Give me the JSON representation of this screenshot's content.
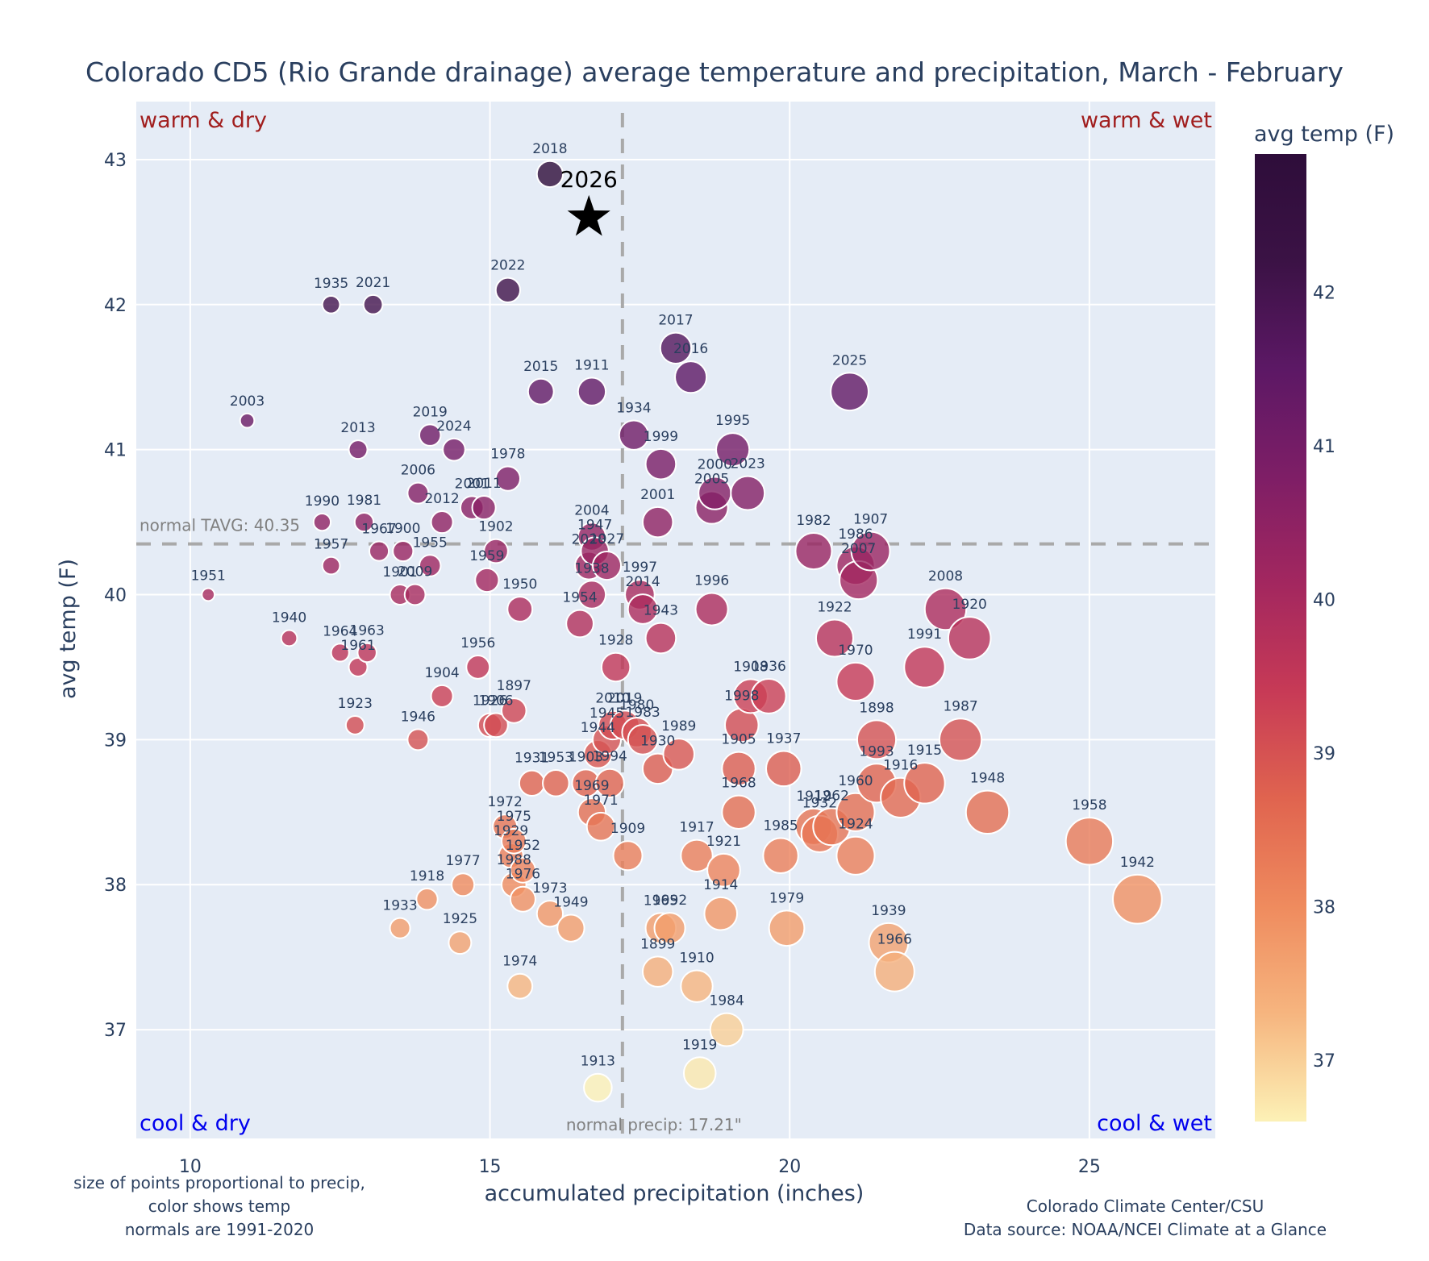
{
  "chart_data": {
    "type": "scatter",
    "title": "Colorado CD5 (Rio Grande drainage) average temperature and precipitation, March - February",
    "xlabel": "accumulated precipitation (inches)",
    "ylabel": "avg temp (F)",
    "xlim": [
      9.1,
      27.1
    ],
    "ylim": [
      36.25,
      43.4
    ],
    "xticks": [
      10,
      15,
      20,
      25
    ],
    "yticks": [
      37,
      38,
      39,
      40,
      41,
      42,
      43
    ],
    "grid": true,
    "colorbar": {
      "title": "avg temp (F)",
      "ticks": [
        37,
        38,
        39,
        40,
        41,
        42
      ],
      "range": [
        36.6,
        42.9
      ],
      "colors": [
        "#fcf1b6",
        "#f6b57f",
        "#ef8b5e",
        "#e0644f",
        "#c73a56",
        "#a3275f",
        "#7e1e66",
        "#5c1865",
        "#3b1245",
        "#2e0d3a"
      ]
    },
    "normals": {
      "precip": 17.21,
      "precip_label": "normal precip: 17.21\"",
      "tavg": 40.35,
      "tavg_label": "normal TAVG: 40.35"
    },
    "quadrant_labels": {
      "top_left": "warm & dry",
      "top_right": "warm & wet",
      "bottom_left": "cool & dry",
      "bottom_right": "cool & wet"
    },
    "highlight": {
      "label": "2026",
      "precip": 16.65,
      "temp": 42.6,
      "marker": "star"
    },
    "points": [
      {
        "year": "2018",
        "x": 16.0,
        "y": 42.9
      },
      {
        "year": "2022",
        "x": 15.3,
        "y": 42.1
      },
      {
        "year": "1935",
        "x": 12.35,
        "y": 42.0
      },
      {
        "year": "2021",
        "x": 13.05,
        "y": 42.0
      },
      {
        "year": "2017",
        "x": 18.1,
        "y": 41.7
      },
      {
        "year": "2016",
        "x": 18.35,
        "y": 41.5
      },
      {
        "year": "2015",
        "x": 15.85,
        "y": 41.4
      },
      {
        "year": "1911",
        "x": 16.7,
        "y": 41.4
      },
      {
        "year": "2025",
        "x": 21.0,
        "y": 41.4
      },
      {
        "year": "2003",
        "x": 10.95,
        "y": 41.2
      },
      {
        "year": "1934",
        "x": 17.4,
        "y": 41.1
      },
      {
        "year": "2019",
        "x": 14.0,
        "y": 41.1
      },
      {
        "year": "2013",
        "x": 12.8,
        "y": 41.0
      },
      {
        "year": "2024",
        "x": 14.4,
        "y": 41.0
      },
      {
        "year": "1995",
        "x": 19.05,
        "y": 41.0
      },
      {
        "year": "1999",
        "x": 17.85,
        "y": 40.9
      },
      {
        "year": "1978",
        "x": 15.3,
        "y": 40.8
      },
      {
        "year": "2006",
        "x": 13.8,
        "y": 40.7
      },
      {
        "year": "2000",
        "x": 18.75,
        "y": 40.7
      },
      {
        "year": "2023",
        "x": 19.3,
        "y": 40.7
      },
      {
        "year": "2001",
        "x": 14.7,
        "y": 40.6
      },
      {
        "year": "2011",
        "x": 14.9,
        "y": 40.6
      },
      {
        "year": "2005",
        "x": 18.7,
        "y": 40.6
      },
      {
        "year": "1990",
        "x": 12.2,
        "y": 40.5
      },
      {
        "year": "1981",
        "x": 12.9,
        "y": 40.5
      },
      {
        "year": "2012",
        "x": 14.2,
        "y": 40.5
      },
      {
        "year": "2001b",
        "x": 17.8,
        "y": 40.5
      },
      {
        "year": "2004",
        "x": 16.7,
        "y": 40.4
      },
      {
        "year": "1947",
        "x": 16.75,
        "y": 40.3
      },
      {
        "year": "1927",
        "x": 16.95,
        "y": 40.2
      },
      {
        "year": "1967",
        "x": 13.15,
        "y": 40.3
      },
      {
        "year": "1900",
        "x": 13.55,
        "y": 40.3
      },
      {
        "year": "1902",
        "x": 15.1,
        "y": 40.3
      },
      {
        "year": "1982",
        "x": 20.4,
        "y": 40.3
      },
      {
        "year": "1907",
        "x": 21.35,
        "y": 40.3
      },
      {
        "year": "1959",
        "x": 14.95,
        "y": 40.1
      },
      {
        "year": "2020",
        "x": 16.65,
        "y": 40.2
      },
      {
        "year": "1957",
        "x": 12.35,
        "y": 40.2
      },
      {
        "year": "1955",
        "x": 14.0,
        "y": 40.2
      },
      {
        "year": "1986",
        "x": 21.1,
        "y": 40.2
      },
      {
        "year": "2007",
        "x": 21.15,
        "y": 40.1
      },
      {
        "year": "1938",
        "x": 16.7,
        "y": 40.0
      },
      {
        "year": "1997",
        "x": 17.5,
        "y": 40.0
      },
      {
        "year": "1951",
        "x": 10.3,
        "y": 40.0
      },
      {
        "year": "1901",
        "x": 13.5,
        "y": 40.0
      },
      {
        "year": "2009",
        "x": 13.75,
        "y": 40.0
      },
      {
        "year": "2014",
        "x": 17.55,
        "y": 39.9
      },
      {
        "year": "1950",
        "x": 15.5,
        "y": 39.9
      },
      {
        "year": "1954",
        "x": 16.5,
        "y": 39.8
      },
      {
        "year": "1943",
        "x": 17.85,
        "y": 39.7
      },
      {
        "year": "1996",
        "x": 18.7,
        "y": 39.9
      },
      {
        "year": "2008",
        "x": 22.6,
        "y": 39.9
      },
      {
        "year": "1920",
        "x": 23.0,
        "y": 39.7
      },
      {
        "year": "1940",
        "x": 11.65,
        "y": 39.7
      },
      {
        "year": "1922",
        "x": 20.75,
        "y": 39.7
      },
      {
        "year": "1964",
        "x": 12.5,
        "y": 39.6
      },
      {
        "year": "1963",
        "x": 12.95,
        "y": 39.6
      },
      {
        "year": "1961",
        "x": 12.8,
        "y": 39.5
      },
      {
        "year": "1928",
        "x": 17.1,
        "y": 39.5
      },
      {
        "year": "1956",
        "x": 14.8,
        "y": 39.5
      },
      {
        "year": "1991",
        "x": 22.25,
        "y": 39.5
      },
      {
        "year": "1970",
        "x": 21.1,
        "y": 39.4
      },
      {
        "year": "1904",
        "x": 14.2,
        "y": 39.3
      },
      {
        "year": "1908",
        "x": 19.35,
        "y": 39.3
      },
      {
        "year": "1936",
        "x": 19.65,
        "y": 39.3
      },
      {
        "year": "1897",
        "x": 15.4,
        "y": 39.2
      },
      {
        "year": "1926",
        "x": 15.0,
        "y": 39.1
      },
      {
        "year": "1906",
        "x": 15.1,
        "y": 39.1
      },
      {
        "year": "1923",
        "x": 12.75,
        "y": 39.1
      },
      {
        "year": "1998",
        "x": 19.2,
        "y": 39.1
      },
      {
        "year": "2010",
        "x": 17.05,
        "y": 39.1
      },
      {
        "year": "2019b",
        "x": 17.25,
        "y": 39.1
      },
      {
        "year": "1980",
        "x": 17.45,
        "y": 39.05
      },
      {
        "year": "1946",
        "x": 13.8,
        "y": 39.0
      },
      {
        "year": "1945",
        "x": 16.95,
        "y": 39.0
      },
      {
        "year": "1983",
        "x": 17.55,
        "y": 39.0
      },
      {
        "year": "1898",
        "x": 21.45,
        "y": 39.0
      },
      {
        "year": "1987",
        "x": 22.85,
        "y": 39.0
      },
      {
        "year": "1944",
        "x": 16.8,
        "y": 38.9
      },
      {
        "year": "1989",
        "x": 18.15,
        "y": 38.9
      },
      {
        "year": "1930",
        "x": 17.8,
        "y": 38.8
      },
      {
        "year": "1905",
        "x": 19.15,
        "y": 38.8
      },
      {
        "year": "1937",
        "x": 19.9,
        "y": 38.8
      },
      {
        "year": "1931",
        "x": 15.7,
        "y": 38.7
      },
      {
        "year": "1953",
        "x": 16.1,
        "y": 38.7
      },
      {
        "year": "1903",
        "x": 16.6,
        "y": 38.7
      },
      {
        "year": "1994",
        "x": 17.0,
        "y": 38.7
      },
      {
        "year": "1993",
        "x": 21.45,
        "y": 38.7
      },
      {
        "year": "1915",
        "x": 22.25,
        "y": 38.7
      },
      {
        "year": "1916",
        "x": 21.85,
        "y": 38.6
      },
      {
        "year": "1969",
        "x": 16.7,
        "y": 38.5
      },
      {
        "year": "1968",
        "x": 19.15,
        "y": 38.5
      },
      {
        "year": "1960",
        "x": 21.1,
        "y": 38.5
      },
      {
        "year": "1948",
        "x": 23.3,
        "y": 38.5
      },
      {
        "year": "1971",
        "x": 16.85,
        "y": 38.4
      },
      {
        "year": "1972",
        "x": 15.25,
        "y": 38.4
      },
      {
        "year": "1912",
        "x": 20.4,
        "y": 38.4
      },
      {
        "year": "1932",
        "x": 20.5,
        "y": 38.35
      },
      {
        "year": "1962",
        "x": 20.7,
        "y": 38.4
      },
      {
        "year": "1975",
        "x": 15.4,
        "y": 38.3
      },
      {
        "year": "1958",
        "x": 25.0,
        "y": 38.3
      },
      {
        "year": "1929",
        "x": 15.35,
        "y": 38.2
      },
      {
        "year": "1909",
        "x": 17.3,
        "y": 38.2
      },
      {
        "year": "1917",
        "x": 18.45,
        "y": 38.2
      },
      {
        "year": "1985",
        "x": 19.85,
        "y": 38.2
      },
      {
        "year": "1924",
        "x": 21.1,
        "y": 38.2
      },
      {
        "year": "1952",
        "x": 15.55,
        "y": 38.1
      },
      {
        "year": "1921",
        "x": 18.9,
        "y": 38.1
      },
      {
        "year": "1988",
        "x": 15.4,
        "y": 38.0
      },
      {
        "year": "1977",
        "x": 14.55,
        "y": 38.0
      },
      {
        "year": "1914",
        "x": 18.85,
        "y": 37.8
      },
      {
        "year": "1976",
        "x": 15.55,
        "y": 37.9
      },
      {
        "year": "1918",
        "x": 13.95,
        "y": 37.9
      },
      {
        "year": "1942",
        "x": 25.8,
        "y": 37.9
      },
      {
        "year": "1973",
        "x": 16.0,
        "y": 37.8
      },
      {
        "year": "1965",
        "x": 17.85,
        "y": 37.7
      },
      {
        "year": "1992",
        "x": 18.0,
        "y": 37.7
      },
      {
        "year": "1949",
        "x": 16.35,
        "y": 37.7
      },
      {
        "year": "1933",
        "x": 13.5,
        "y": 37.7
      },
      {
        "year": "1979",
        "x": 19.95,
        "y": 37.7
      },
      {
        "year": "1925",
        "x": 14.5,
        "y": 37.6
      },
      {
        "year": "1939",
        "x": 21.65,
        "y": 37.6
      },
      {
        "year": "1899",
        "x": 17.8,
        "y": 37.4
      },
      {
        "year": "1966",
        "x": 21.75,
        "y": 37.4
      },
      {
        "year": "1910",
        "x": 18.45,
        "y": 37.3
      },
      {
        "year": "1974",
        "x": 15.5,
        "y": 37.3
      },
      {
        "year": "1984",
        "x": 18.95,
        "y": 37.0
      },
      {
        "year": "1919",
        "x": 18.5,
        "y": 36.7
      },
      {
        "year": "1913",
        "x": 16.8,
        "y": 36.6
      }
    ]
  },
  "notes": {
    "left": [
      "size of points proportional to precip,",
      "color shows temp",
      "normals are 1991-2020"
    ],
    "right": [
      "Colorado Climate Center/CSU",
      "Data source: NOAA/NCEI Climate at a Glance"
    ]
  }
}
